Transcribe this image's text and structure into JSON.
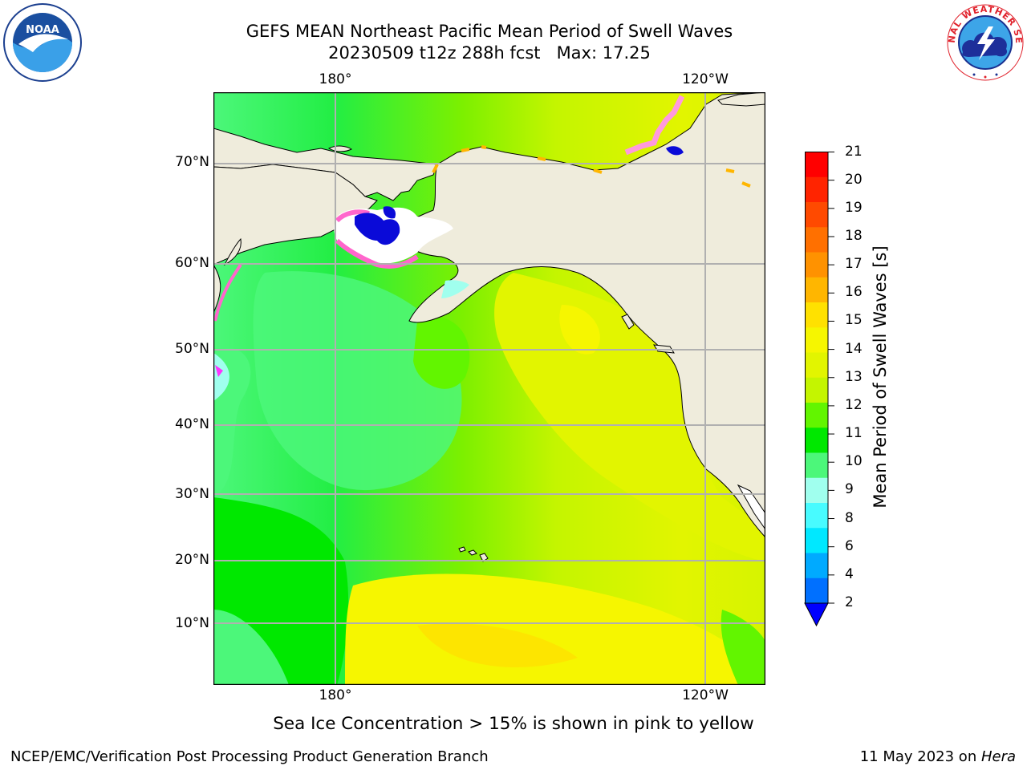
{
  "header": {
    "title_line1": "GEFS MEAN Northeast Pacific Mean Period of Swell Waves",
    "title_line2": "20230509 t12z 288h fcst   Max: 17.25"
  },
  "logos": {
    "left": {
      "name": "noaa-logo-icon",
      "text": "NOAA",
      "ring_text": "NATIONAL OCEANIC AND ATMOSPHERIC ADMINISTRATION · U.S. DEPARTMENT OF COMMERCE"
    },
    "right": {
      "name": "nws-logo-icon",
      "ring_text": "NATIONAL WEATHER SERVICE"
    }
  },
  "map": {
    "lon_labels_top": [
      "180°",
      "120°W"
    ],
    "lon_labels_bottom": [
      "180°",
      "120°W"
    ],
    "lat_labels": [
      "70°N",
      "60°N",
      "50°N",
      "40°N",
      "30°N",
      "20°N",
      "10°N"
    ],
    "colors": {
      "land": "#efecdc",
      "grid": "#b0b0b0",
      "coast": "#000000",
      "ice_pink": "#ff66cc",
      "ice_blue": "#0a0ad8"
    }
  },
  "colorbar": {
    "label": "Mean Period of Swell Waves [s]",
    "ticks": [
      "21",
      "20",
      "19",
      "18",
      "17",
      "16",
      "15",
      "14",
      "13",
      "12",
      "11",
      "10",
      "9",
      "8",
      "6",
      "4",
      "2"
    ],
    "colors_top_to_bottom": [
      "#ff0000",
      "#ff2400",
      "#ff4a00",
      "#ff7000",
      "#ff9200",
      "#ffb600",
      "#ffe100",
      "#f6f600",
      "#e2f500",
      "#c4f500",
      "#62f500",
      "#00e800",
      "#4cf77a",
      "#a0ffee",
      "#48fbff",
      "#00e8ff",
      "#00aaff",
      "#0070ff"
    ],
    "extend_color": "#0000ff"
  },
  "note": "Sea Ice Concentration > 15% is shown in pink to yellow",
  "footer": {
    "left": "NCEP/EMC/Verification Post Processing Product Generation Branch",
    "right_prefix": "11 May 2023 on ",
    "right_italic": "Hera"
  }
}
